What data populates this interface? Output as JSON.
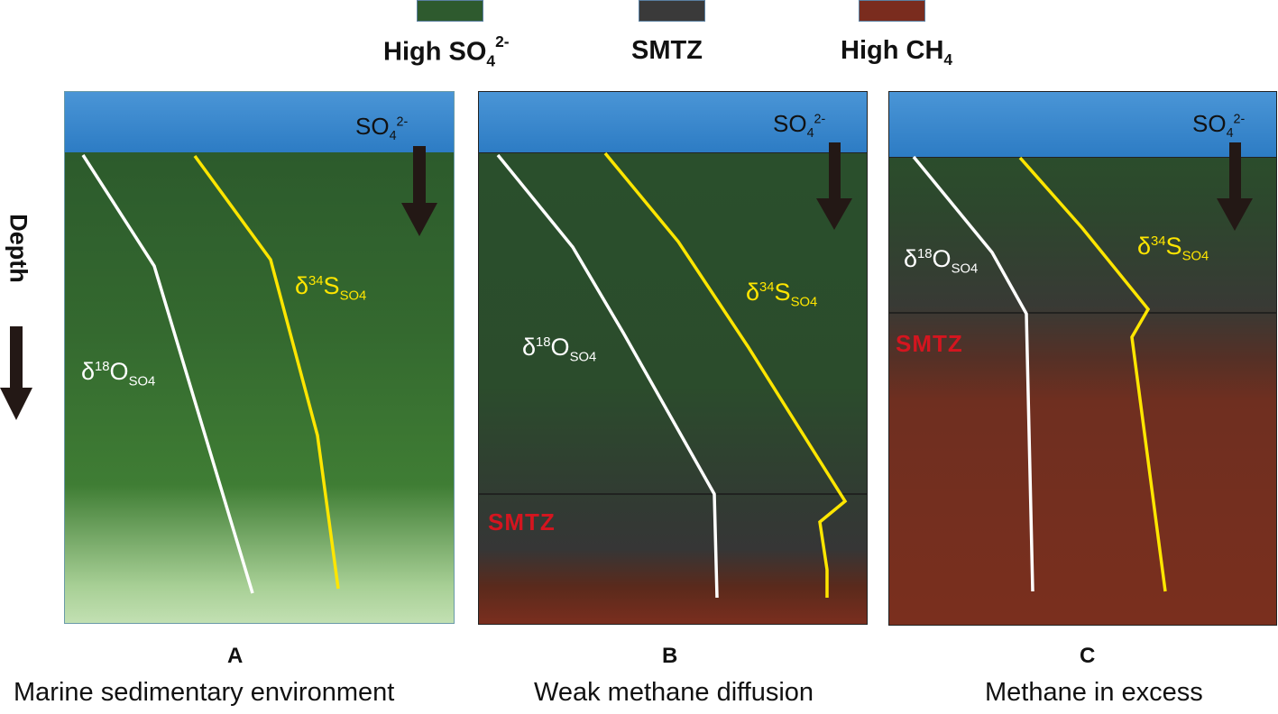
{
  "legend": {
    "items": [
      {
        "label": "High",
        "formula": "SO",
        "sub": "4",
        "sup": "2-",
        "color": "#2e5a2e"
      },
      {
        "label": "SMTZ",
        "color": "#3a3a3a"
      },
      {
        "label": "High",
        "formula": "CH",
        "sub": "4",
        "color": "#7a2c1e"
      }
    ]
  },
  "axis": {
    "depth_label": "Depth"
  },
  "panels": [
    {
      "letter": "A",
      "caption": "Marine sedimentary environment",
      "sulfate": {
        "base": "SO",
        "sub": "4",
        "sup": "2-"
      },
      "oxygen_label": {
        "delta": "δ",
        "mass": "18",
        "element": "O",
        "sub": "SO4"
      },
      "sulfur_label": {
        "delta": "δ",
        "mass": "34",
        "element": "S",
        "sub": "SO4"
      },
      "smtz": ""
    },
    {
      "letter": "B",
      "caption": "Weak methane diffusion",
      "sulfate": {
        "base": "SO",
        "sub": "4",
        "sup": "2-"
      },
      "oxygen_label": {
        "delta": "δ",
        "mass": "18",
        "element": "O",
        "sub": "SO4"
      },
      "sulfur_label": {
        "delta": "δ",
        "mass": "34",
        "element": "S",
        "sub": "SO4"
      },
      "smtz": "SMTZ"
    },
    {
      "letter": "C",
      "caption": "Methane in excess",
      "sulfate": {
        "base": "SO",
        "sub": "4",
        "sup": "2-"
      },
      "oxygen_label": {
        "delta": "δ",
        "mass": "18",
        "element": "O",
        "sub": "SO4"
      },
      "sulfur_label": {
        "delta": "δ",
        "mass": "34",
        "element": "S",
        "sub": "SO4"
      },
      "smtz": "SMTZ"
    }
  ],
  "colors": {
    "high_so4": "#2e5a2e",
    "smtz": "#3a3a3a",
    "high_ch4": "#7a2c1e",
    "water": "#3b8ad0",
    "oxygen_line": "#ffffff",
    "sulfur_line": "#ffe600",
    "smtz_text": "#d4151f",
    "arrow": "#231815"
  }
}
